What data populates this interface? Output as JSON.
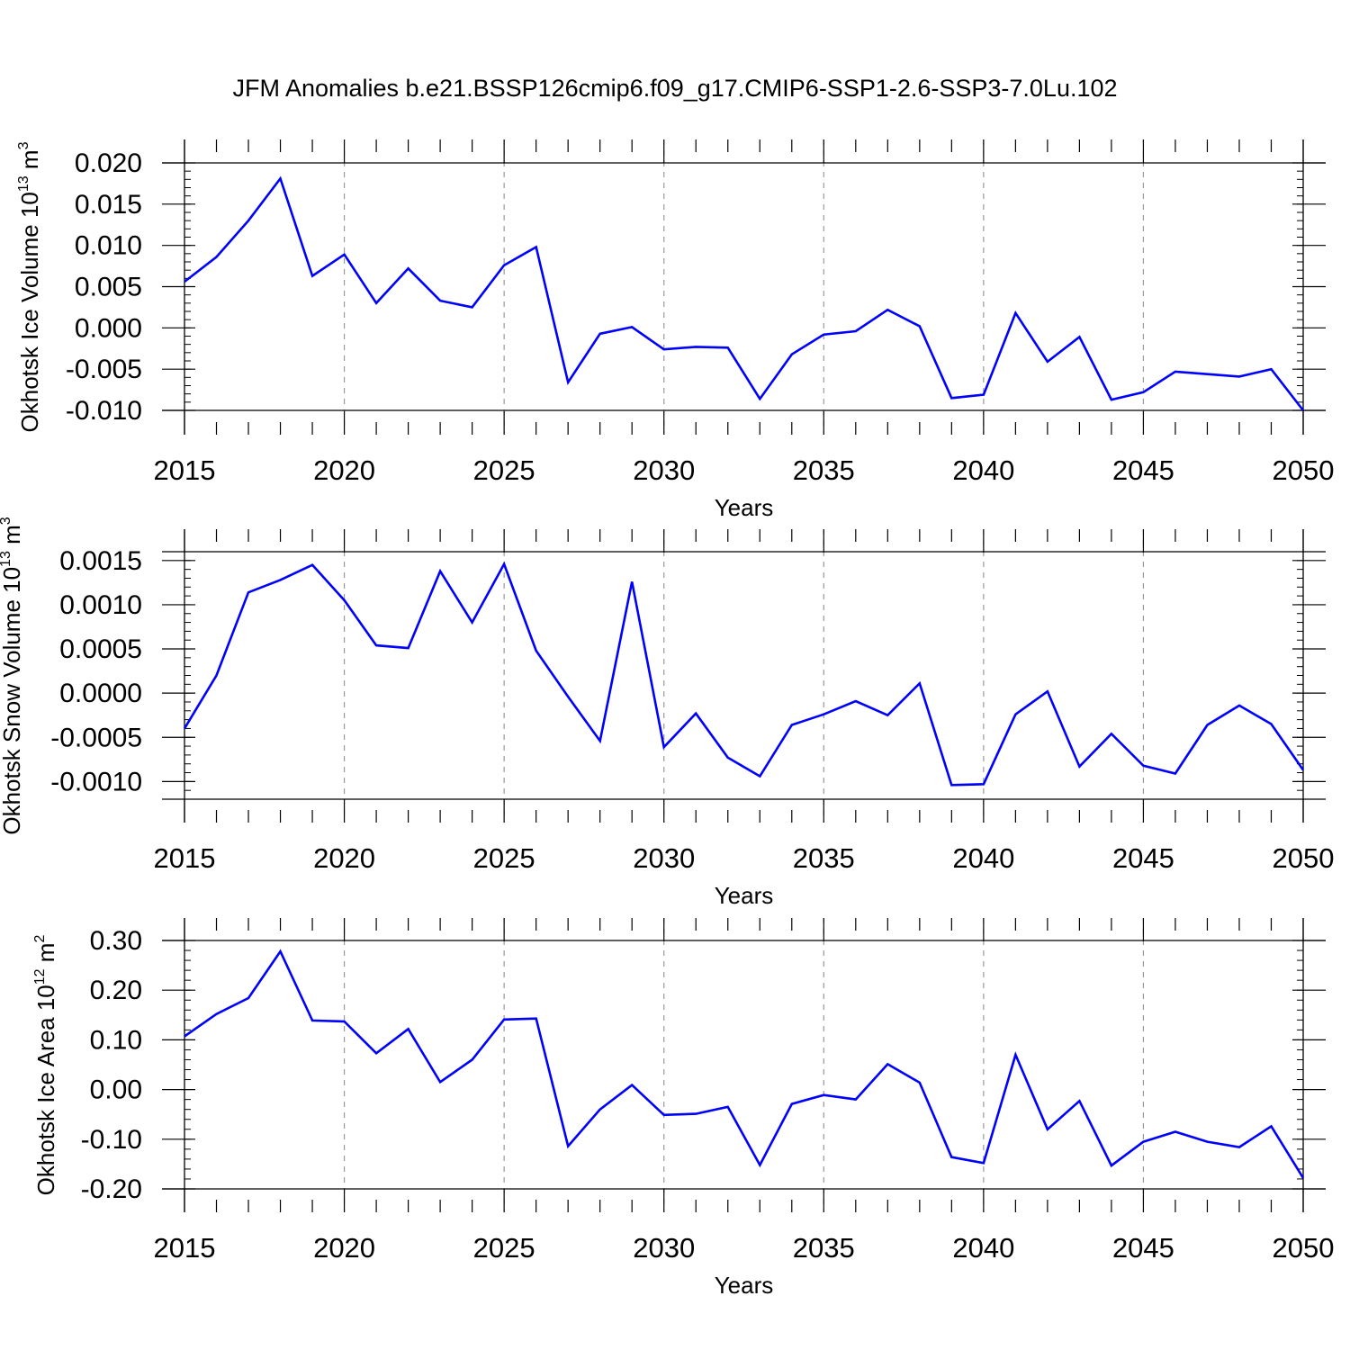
{
  "figure_title": "JFM Anomalies b.e21.BSSP126cmip6.f09_g17.CMIP6-SSP1-2.6-SSP3-7.0Lu.102",
  "colors": {
    "line": "#0000ff",
    "axis": "#000000",
    "grid": "#999999"
  },
  "chart_data": [
    {
      "type": "line",
      "title": "",
      "xlabel": "Years",
      "ylabel": "Okhotsk Ice Volume 10",
      "ylabel_exponent": "13",
      "ylabel_unit": " m",
      "ylabel_unit_exponent": "3",
      "xlim": [
        2015,
        2050
      ],
      "ylim": [
        -0.01,
        0.02
      ],
      "yticks": [
        0.02,
        0.015,
        0.01,
        0.005,
        0.0,
        -0.005,
        -0.01
      ],
      "ytick_labels": [
        "0.020",
        "0.015",
        "0.010",
        "0.005",
        "0.000",
        "-0.005",
        "-0.010"
      ],
      "xticks": [
        2015,
        2020,
        2025,
        2030,
        2035,
        2040,
        2045,
        2050
      ],
      "xtick_labels": [
        "2015",
        "2020",
        "2025",
        "2030",
        "2035",
        "2040",
        "2045",
        "2050"
      ],
      "x": [
        2015,
        2016,
        2017,
        2018,
        2019,
        2020,
        2021,
        2022,
        2023,
        2024,
        2025,
        2026,
        2027,
        2028,
        2029,
        2030,
        2031,
        2032,
        2033,
        2034,
        2035,
        2036,
        2037,
        2038,
        2039,
        2040,
        2041,
        2042,
        2043,
        2044,
        2045,
        2046,
        2047,
        2048,
        2049,
        2050
      ],
      "series": [
        {
          "name": "Okhotsk Ice Volume",
          "values": [
            0.0056,
            0.0086,
            0.013,
            0.0181,
            0.0063,
            0.0089,
            0.003,
            0.0072,
            0.0033,
            0.0025,
            0.0076,
            0.0098,
            -0.0066,
            -0.0007,
            0.0001,
            -0.0026,
            -0.0023,
            -0.0024,
            -0.0086,
            -0.0032,
            -0.0008,
            -0.0004,
            0.0022,
            0.0002,
            -0.0085,
            -0.0081,
            0.0018,
            -0.0041,
            -0.0011,
            -0.0087,
            -0.0078,
            -0.0053,
            -0.0056,
            -0.0059,
            -0.005,
            -0.01
          ]
        }
      ]
    },
    {
      "type": "line",
      "title": "",
      "xlabel": "Years",
      "ylabel": "Okhotsk Snow Volume 10",
      "ylabel_exponent": "13",
      "ylabel_unit": " m",
      "ylabel_unit_exponent": "3",
      "xlim": [
        2015,
        2050
      ],
      "ylim": [
        -0.0012,
        0.0016
      ],
      "yticks": [
        0.0015,
        0.001,
        0.0005,
        0.0,
        -0.0005,
        -0.001
      ],
      "ytick_labels": [
        "0.0015",
        "0.0010",
        "0.0005",
        "0.0000",
        "-0.0005",
        "-0.0010"
      ],
      "xticks": [
        2015,
        2020,
        2025,
        2030,
        2035,
        2040,
        2045,
        2050
      ],
      "xtick_labels": [
        "2015",
        "2020",
        "2025",
        "2030",
        "2035",
        "2040",
        "2045",
        "2050"
      ],
      "x": [
        2015,
        2016,
        2017,
        2018,
        2019,
        2020,
        2021,
        2022,
        2023,
        2024,
        2025,
        2026,
        2027,
        2028,
        2029,
        2030,
        2031,
        2032,
        2033,
        2034,
        2035,
        2036,
        2037,
        2038,
        2039,
        2040,
        2041,
        2042,
        2043,
        2044,
        2045,
        2046,
        2047,
        2048,
        2049,
        2050
      ],
      "series": [
        {
          "name": "Okhotsk Snow Volume",
          "values": [
            -0.0004,
            0.0002,
            0.00114,
            0.00128,
            0.00145,
            0.00105,
            0.00054,
            0.00051,
            0.00138,
            0.0008,
            0.00146,
            0.00048,
            -4e-05,
            -0.00054,
            0.00126,
            -0.00061,
            -0.00023,
            -0.00073,
            -0.00094,
            -0.00036,
            -0.00024,
            -9e-05,
            -0.00025,
            0.00011,
            -0.00104,
            -0.00103,
            -0.00024,
            2e-05,
            -0.00083,
            -0.00046,
            -0.00082,
            -0.00091,
            -0.00036,
            -0.00014,
            -0.00035,
            -0.00087
          ]
        }
      ]
    },
    {
      "type": "line",
      "title": "",
      "xlabel": "Years",
      "ylabel": "Okhotsk Ice Area 10",
      "ylabel_exponent": "12",
      "ylabel_unit": " m",
      "ylabel_unit_exponent": "2",
      "xlim": [
        2015,
        2050
      ],
      "ylim": [
        -0.2,
        0.3
      ],
      "yticks": [
        0.3,
        0.2,
        0.1,
        0.0,
        -0.1,
        -0.2
      ],
      "ytick_labels": [
        "0.30",
        "0.20",
        "0.10",
        "0.00",
        "-0.10",
        "-0.20"
      ],
      "xticks": [
        2015,
        2020,
        2025,
        2030,
        2035,
        2040,
        2045,
        2050
      ],
      "xtick_labels": [
        "2015",
        "2020",
        "2025",
        "2030",
        "2035",
        "2040",
        "2045",
        "2050"
      ],
      "x": [
        2015,
        2016,
        2017,
        2018,
        2019,
        2020,
        2021,
        2022,
        2023,
        2024,
        2025,
        2026,
        2027,
        2028,
        2029,
        2030,
        2031,
        2032,
        2033,
        2034,
        2035,
        2036,
        2037,
        2038,
        2039,
        2040,
        2041,
        2042,
        2043,
        2044,
        2045,
        2046,
        2047,
        2048,
        2049,
        2050
      ],
      "series": [
        {
          "name": "Okhotsk Ice Area",
          "values": [
            0.107,
            0.152,
            0.184,
            0.278,
            0.139,
            0.137,
            0.073,
            0.122,
            0.015,
            0.06,
            0.141,
            0.143,
            -0.114,
            -0.04,
            0.009,
            -0.051,
            -0.049,
            -0.035,
            -0.152,
            -0.029,
            -0.011,
            -0.02,
            0.051,
            0.014,
            -0.136,
            -0.148,
            0.07,
            -0.08,
            -0.023,
            -0.153,
            -0.105,
            -0.085,
            -0.105,
            -0.116,
            -0.074,
            -0.178
          ]
        }
      ]
    }
  ]
}
